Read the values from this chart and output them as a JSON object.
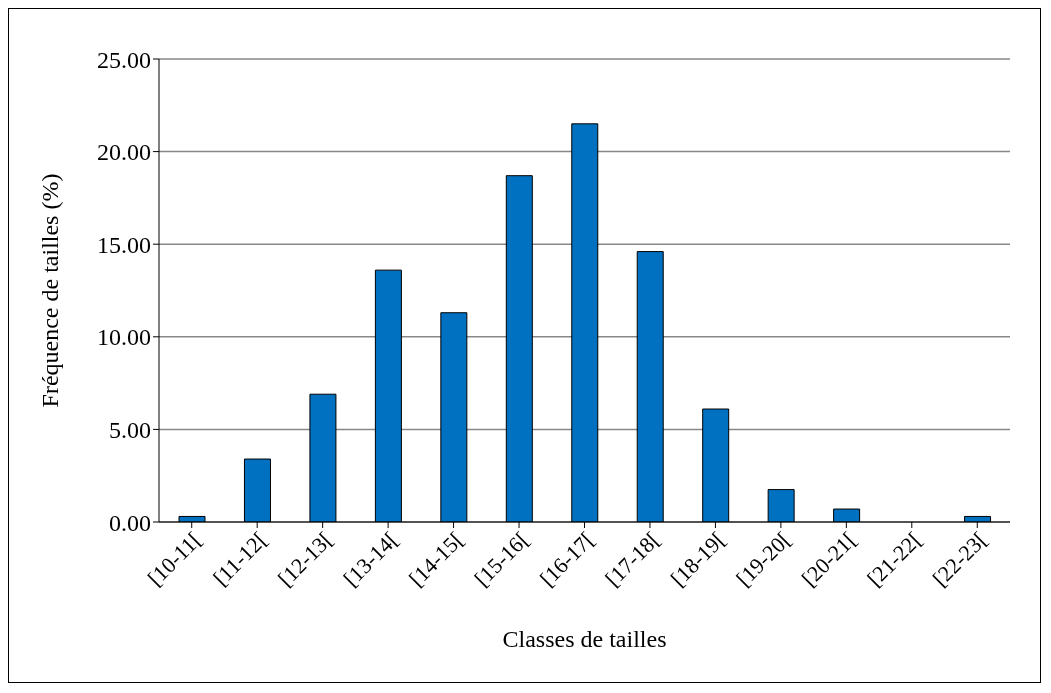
{
  "chart_data": {
    "type": "bar",
    "xlabel": "Classes de tailles",
    "ylabel": "Fréquence de tailles (%)",
    "categories": [
      "[10-11[",
      "[11-12[",
      "[12-13[",
      "[13-14[",
      "[14-15[",
      "[15-16[",
      "[16-17[",
      "[17-18[",
      "[18-19[",
      "[19-20[",
      "[20-21[",
      "[21-22[",
      "[22-23["
    ],
    "values": [
      0.3,
      3.4,
      6.9,
      13.6,
      11.3,
      18.7,
      21.5,
      14.6,
      6.1,
      1.75,
      0.7,
      0,
      0.3
    ],
    "color": "#0070c0",
    "ylim": [
      0,
      25
    ],
    "yticks": [
      {
        "value": 0,
        "label": "0.00"
      },
      {
        "value": 5,
        "label": "5.00"
      },
      {
        "value": 10,
        "label": "10.00"
      },
      {
        "value": 15,
        "label": "15.00"
      },
      {
        "value": 20,
        "label": "20.00"
      },
      {
        "value": 25,
        "label": "25.00"
      }
    ],
    "grid": "y",
    "legend": false
  }
}
